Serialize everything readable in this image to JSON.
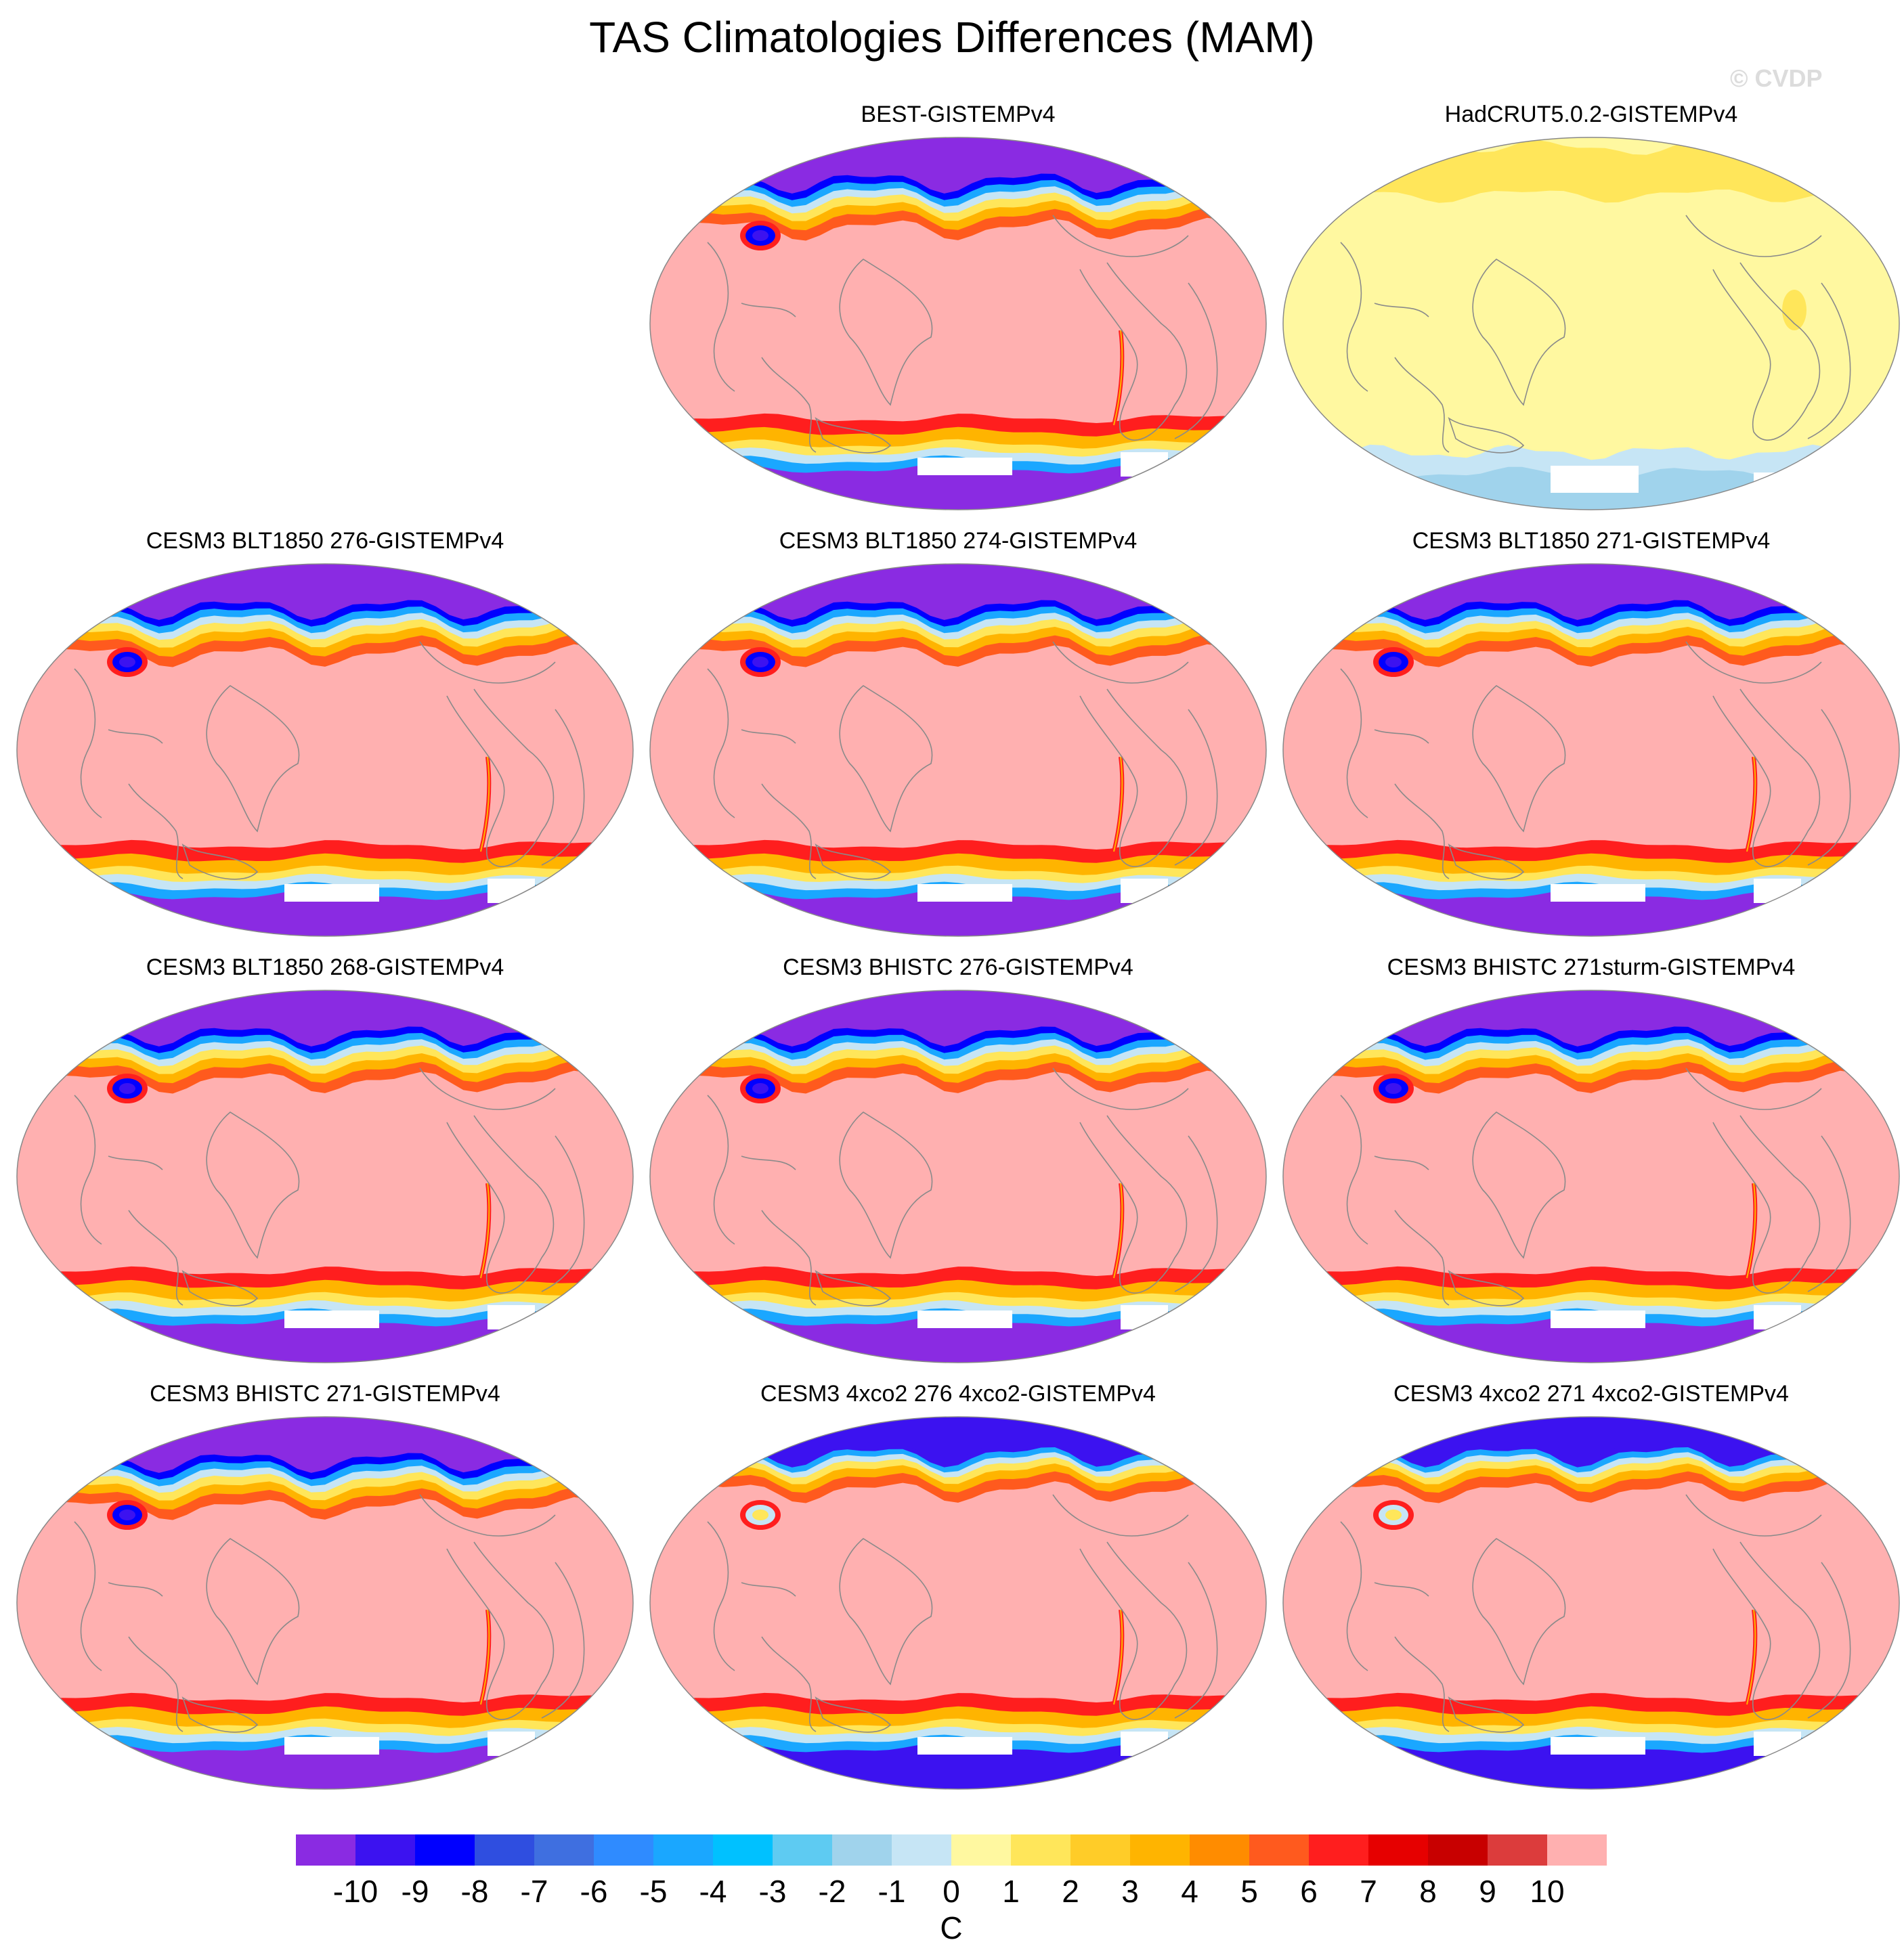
{
  "title": "TAS Climatologies Differences (MAM)",
  "watermark": "© CVDP",
  "chart_data": {
    "type": "heatmap",
    "title": "TAS Climatologies Differences (MAM)",
    "variable": "TAS",
    "season": "MAM",
    "projection": "Robinson",
    "colorbar": {
      "label": "C",
      "ticks": [
        "-10",
        "-9",
        "-8",
        "-7",
        "-6",
        "-5",
        "-4",
        "-3",
        "-2",
        "-1",
        "0",
        "1",
        "2",
        "3",
        "4",
        "5",
        "6",
        "7",
        "8",
        "9",
        "10"
      ],
      "colors": [
        "#8a2be2",
        "#3c12f0",
        "#0000ff",
        "#2f4ee0",
        "#3f6fe0",
        "#2f8bff",
        "#1aa7ff",
        "#00c1ff",
        "#5ecbf2",
        "#a0d3ec",
        "#c6e5f5",
        "#fff8a0",
        "#ffe65a",
        "#ffcc28",
        "#ffb400",
        "#ff8c00",
        "#ff5a1e",
        "#ff1e1e",
        "#e60000",
        "#c80000",
        "#dc3c3c",
        "#ffb0b0"
      ]
    },
    "panels": [
      {
        "name": "BEST-GISTEMPv4",
        "kind": "extreme"
      },
      {
        "name": "HadCRUT5.0.2-GISTEMPv4",
        "kind": "mild"
      },
      {
        "name": "CESM3 BLT1850 276-GISTEMPv4",
        "kind": "extreme"
      },
      {
        "name": "CESM3 BLT1850 274-GISTEMPv4",
        "kind": "extreme"
      },
      {
        "name": "CESM3 BLT1850 271-GISTEMPv4",
        "kind": "extreme"
      },
      {
        "name": "CESM3 BLT1850 268-GISTEMPv4",
        "kind": "extreme"
      },
      {
        "name": "CESM3 BHISTC 276-GISTEMPv4",
        "kind": "extreme"
      },
      {
        "name": "CESM3 BHISTC 271sturm-GISTEMPv4",
        "kind": "extreme"
      },
      {
        "name": "CESM3 BHISTC 271-GISTEMPv4",
        "kind": "extreme"
      },
      {
        "name": "CESM3 4xco2 276 4xco2-GISTEMPv4",
        "kind": "warm"
      },
      {
        "name": "CESM3 4xco2 271 4xco2-GISTEMPv4",
        "kind": "warm"
      }
    ]
  }
}
